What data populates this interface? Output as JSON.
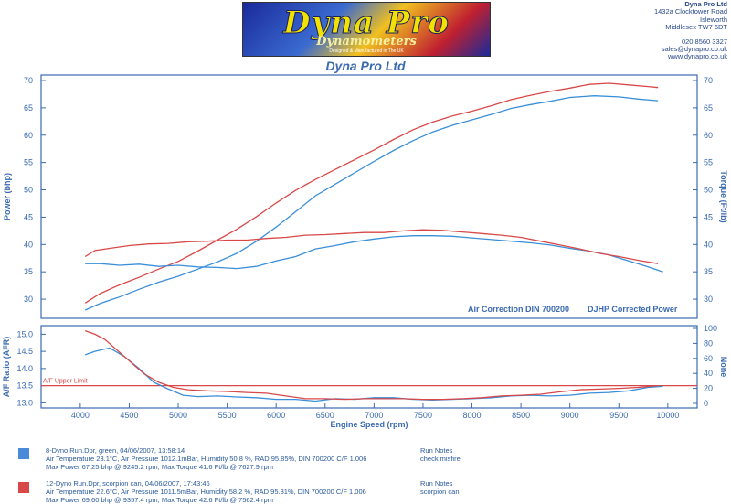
{
  "header": {
    "logo_main": "Dyna Pro",
    "logo_sub": "Dynamometers",
    "logo_small": "Designed & Manufactured in The UK",
    "company": "Dyna Pro Ltd",
    "address_line1": "1432a Clocktower Road",
    "address_line2": "Isleworth",
    "address_line3": "Middlesex TW7 6DT",
    "phone": "020 8560 3327",
    "email": "sales@dynapro.co.uk",
    "web": "www.dynapro.co.uk"
  },
  "chart_data": [
    {
      "type": "line",
      "title": "Dyna Pro Ltd",
      "xlabel": "Engine Speed (rpm)",
      "ylabel": "Power (bhp)",
      "y2label": "Torque (Ft/lb)",
      "xlim": [
        3600,
        10300
      ],
      "ylim": [
        26.5,
        71
      ],
      "yticks": [
        30,
        35,
        40,
        45,
        50,
        55,
        60,
        65,
        70
      ],
      "annotations": [
        "Air Correction DIN 700200",
        "DJHP Corrected Power"
      ],
      "series": [
        {
          "name": "8-Dyno Run.Dpr - Power",
          "color": "#3a8fd8",
          "axis": "power",
          "x": [
            4050,
            4200,
            4400,
            4600,
            4800,
            5000,
            5200,
            5400,
            5600,
            5800,
            6000,
            6200,
            6400,
            6600,
            6800,
            7000,
            7200,
            7400,
            7600,
            7800,
            8000,
            8200,
            8400,
            8600,
            8800,
            9000,
            9250,
            9500,
            9700,
            9900
          ],
          "y": [
            28.0,
            29.2,
            30.4,
            31.8,
            33.1,
            34.2,
            35.5,
            36.8,
            38.4,
            40.6,
            43.2,
            46.0,
            48.9,
            51.0,
            53.1,
            55.2,
            57.2,
            59.0,
            60.6,
            61.8,
            62.8,
            63.8,
            64.9,
            65.6,
            66.2,
            66.9,
            67.2,
            67.0,
            66.6,
            66.3
          ]
        },
        {
          "name": "12-Dyno Run.Dpr - Power",
          "color": "#d84848",
          "axis": "power",
          "x": [
            4050,
            4200,
            4400,
            4600,
            4800,
            5000,
            5200,
            5400,
            5600,
            5800,
            6000,
            6200,
            6400,
            6600,
            6800,
            7000,
            7200,
            7400,
            7600,
            7800,
            8000,
            8200,
            8400,
            8600,
            8800,
            9000,
            9200,
            9400,
            9600,
            9800,
            9900
          ],
          "y": [
            29.3,
            31.0,
            32.6,
            34.0,
            35.5,
            36.9,
            38.8,
            40.8,
            42.8,
            45.1,
            47.6,
            49.9,
            51.9,
            53.7,
            55.5,
            57.3,
            59.2,
            61.0,
            62.4,
            63.5,
            64.4,
            65.4,
            66.5,
            67.3,
            68.0,
            68.6,
            69.3,
            69.5,
            69.2,
            68.9,
            68.7
          ]
        },
        {
          "name": "8-Dyno Run.Dpr - Torque",
          "color": "#3a8fd8",
          "axis": "torque",
          "x": [
            4050,
            4200,
            4400,
            4600,
            4800,
            5000,
            5200,
            5400,
            5600,
            5800,
            6000,
            6200,
            6400,
            6600,
            6800,
            7000,
            7200,
            7400,
            7600,
            7800,
            8000,
            8200,
            8400,
            8600,
            8800,
            9000,
            9200,
            9400,
            9600,
            9800,
            9950
          ],
          "y": [
            36.5,
            36.5,
            36.2,
            36.4,
            36.0,
            36.2,
            35.9,
            35.8,
            35.6,
            36.0,
            37.0,
            37.8,
            39.2,
            39.8,
            40.5,
            41.0,
            41.4,
            41.6,
            41.6,
            41.5,
            41.2,
            40.9,
            40.6,
            40.3,
            39.9,
            39.3,
            38.8,
            38.1,
            37.0,
            35.9,
            35.0
          ]
        },
        {
          "name": "12-Dyno Run.Dpr - Torque",
          "color": "#d84848",
          "axis": "torque",
          "x": [
            4050,
            4150,
            4300,
            4500,
            4700,
            4900,
            5100,
            5300,
            5500,
            5700,
            5900,
            6100,
            6300,
            6500,
            6700,
            6900,
            7100,
            7300,
            7500,
            7700,
            7900,
            8100,
            8300,
            8500,
            8700,
            8900,
            9100,
            9300,
            9500,
            9700,
            9900
          ],
          "y": [
            37.8,
            38.9,
            39.3,
            39.8,
            40.1,
            40.2,
            40.5,
            40.6,
            40.8,
            40.8,
            41.1,
            41.3,
            41.7,
            41.8,
            42.0,
            42.2,
            42.2,
            42.5,
            42.7,
            42.6,
            42.3,
            42.0,
            41.7,
            41.3,
            40.6,
            39.9,
            39.2,
            38.4,
            37.8,
            37.1,
            36.5
          ]
        }
      ]
    },
    {
      "type": "line",
      "xlabel": "Engine Speed (rpm)",
      "ylabel": "A/F Ratio (AFR)",
      "y2label": "None",
      "xlim": [
        3600,
        10300
      ],
      "ylim": [
        12.85,
        15.25
      ],
      "yticks": [
        13.0,
        13.5,
        14.0,
        14.5,
        15.0
      ],
      "y2ticks": [
        0,
        20,
        40,
        60,
        80,
        100
      ],
      "xticks": [
        4000,
        4500,
        5000,
        5500,
        6000,
        6500,
        7000,
        7500,
        8000,
        8500,
        9000,
        9500,
        10000
      ],
      "limit_label": "A/F Upper Limit",
      "limit_value": 13.5,
      "series": [
        {
          "name": "8-Dyno Run.Dpr - AFR",
          "color": "#3a8fd8",
          "x": [
            4050,
            4150,
            4300,
            4450,
            4600,
            4750,
            4900,
            5050,
            5200,
            5400,
            5600,
            5800,
            6000,
            6200,
            6400,
            6600,
            6800,
            7000,
            7200,
            7400,
            7600,
            7800,
            8000,
            8200,
            8400,
            8600,
            8800,
            9000,
            9200,
            9400,
            9600,
            9800,
            9950
          ],
          "y": [
            14.4,
            14.5,
            14.6,
            14.35,
            14.0,
            13.6,
            13.4,
            13.22,
            13.18,
            13.2,
            13.17,
            13.15,
            13.1,
            13.1,
            13.05,
            13.12,
            13.1,
            13.15,
            13.15,
            13.1,
            13.08,
            13.1,
            13.12,
            13.15,
            13.2,
            13.22,
            13.2,
            13.22,
            13.28,
            13.3,
            13.35,
            13.45,
            13.48
          ]
        },
        {
          "name": "12-Dyno Run.Dpr - AFR",
          "color": "#d84848",
          "x": [
            4050,
            4150,
            4250,
            4350,
            4450,
            4550,
            4650,
            4800,
            4950,
            5100,
            5300,
            5500,
            5700,
            5900,
            6100,
            6300,
            6500,
            6700,
            6900,
            7100,
            7300,
            7500,
            7700,
            7900,
            8100,
            8300,
            8500,
            8700,
            8900,
            9100,
            9300,
            9500,
            9700,
            9900
          ],
          "y": [
            15.1,
            15.0,
            14.85,
            14.6,
            14.35,
            14.1,
            13.85,
            13.6,
            13.45,
            13.38,
            13.35,
            13.33,
            13.3,
            13.28,
            13.2,
            13.12,
            13.12,
            13.1,
            13.12,
            13.12,
            13.12,
            13.1,
            13.1,
            13.12,
            13.15,
            13.2,
            13.22,
            13.25,
            13.32,
            13.38,
            13.4,
            13.42,
            13.45,
            13.5
          ]
        }
      ]
    }
  ],
  "legend": [
    {
      "color": "#4a8ad8",
      "line1": "8-Dyno Run.Dpr,   green,     04/06/2007,    13:58:14",
      "line2": "Air Temperature 23.1°C, Air Pressure 1012.1mBar, Humidity 50.8 %, RAD 95.85%,   DIN 700200  C/F 1.006",
      "line3": "Max Power 67.25 bhp @ 9245.2 rpm, Max Torque 41.6 Ft/lb @ 7627.9 rpm",
      "notes_title": "Run Notes",
      "notes": "check misfire"
    },
    {
      "color": "#d84848",
      "line1": "12-Dyno Run.Dpr,   scorpion can,   04/06/2007,    17:43:46",
      "line2": "Air Temperature 22.6°C, Air Pressure 1011.5mBar, Humidity 58.2 %, RAD 95.81%,   DIN 700200  C/F 1.006",
      "line3": "Max Power 69.60 bhp @ 9357.4 rpm, Max Torque 42.6 Ft/lb @ 7562.4 rpm",
      "notes_title": "Run Notes",
      "notes": "scorpion can"
    }
  ]
}
